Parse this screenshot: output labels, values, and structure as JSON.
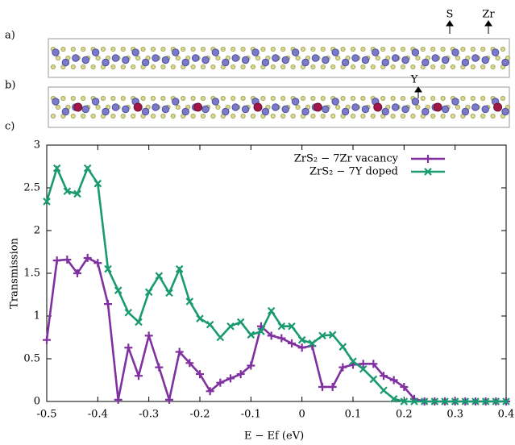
{
  "panel_labels": [
    "a)",
    "b)",
    "c)"
  ],
  "atom_labels": [
    "S",
    "Zr",
    "Y"
  ],
  "chart_data": {
    "type": "line",
    "xlabel": "E − Ef (eV)",
    "ylabel": "Transmission",
    "x": [
      -0.5,
      -0.48,
      -0.46,
      -0.44,
      -0.42,
      -0.4,
      -0.38,
      -0.36,
      -0.34,
      -0.32,
      -0.3,
      -0.28,
      -0.26,
      -0.24,
      -0.22,
      -0.2,
      -0.18,
      -0.16,
      -0.14,
      -0.12,
      -0.1,
      -0.08,
      -0.06,
      -0.04,
      -0.02,
      0,
      0.02,
      0.04,
      0.06,
      0.08,
      0.1,
      0.12,
      0.14,
      0.16,
      0.18,
      0.2,
      0.22,
      0.24,
      0.26,
      0.28,
      0.3,
      0.32,
      0.34,
      0.36,
      0.38,
      0.4
    ],
    "series": [
      {
        "name": "ZrS₂ − 7Zr vacancy",
        "color": "#8030a0",
        "marker": "plus",
        "values": [
          0.72,
          1.65,
          1.66,
          1.5,
          1.68,
          1.62,
          1.14,
          0.02,
          0.63,
          0.3,
          0.77,
          0.4,
          0.02,
          0.58,
          0.45,
          0.32,
          0.12,
          0.22,
          0.27,
          0.32,
          0.42,
          0.88,
          0.77,
          0.74,
          0.68,
          0.63,
          0.65,
          0.17,
          0.17,
          0.4,
          0.43,
          0.44,
          0.44,
          0.3,
          0.25,
          0.17,
          0.03,
          0,
          0,
          0,
          0,
          0,
          0,
          0,
          0,
          0
        ]
      },
      {
        "name": "ZrS₂ − 7Y doped",
        "color": "#1a9a70",
        "marker": "cross",
        "values": [
          2.34,
          2.73,
          2.46,
          2.43,
          2.73,
          2.55,
          1.55,
          1.3,
          1.04,
          0.93,
          1.28,
          1.47,
          1.27,
          1.55,
          1.17,
          0.97,
          0.9,
          0.75,
          0.88,
          0.93,
          0.78,
          0.82,
          1.06,
          0.88,
          0.88,
          0.72,
          0.68,
          0.77,
          0.78,
          0.64,
          0.47,
          0.38,
          0.26,
          0.13,
          0.03,
          0,
          0,
          0,
          0,
          0,
          0,
          0,
          0,
          0,
          0,
          0
        ]
      }
    ],
    "xlim": [
      -0.5,
      0.4
    ],
    "xticks": [
      -0.5,
      -0.4,
      -0.3,
      -0.2,
      -0.1,
      0,
      0.1,
      0.2,
      0.3,
      0.4
    ],
    "ylim": [
      0,
      3
    ],
    "yticks": [
      0,
      0.5,
      1,
      1.5,
      2,
      2.5,
      3
    ],
    "legend": "top-right"
  }
}
